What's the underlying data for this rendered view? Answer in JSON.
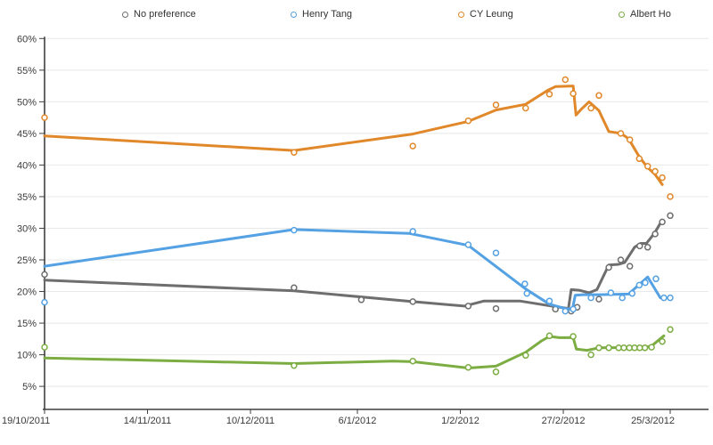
{
  "chart_data": {
    "type": "line",
    "grid": true,
    "legend_position": "top",
    "marker_style": "open-circle",
    "x_axis": {
      "tick_labels": [
        "19/10/2011",
        "14/11/2011",
        "10/12/2011",
        "6/1/2012",
        "1/2/2012",
        "27/2/2012",
        "25/3/2012"
      ],
      "tick_positions_days": [
        0,
        26,
        52,
        79,
        105,
        131,
        158
      ],
      "range_days": [
        0,
        158
      ],
      "start_date": "19/10/2011",
      "end_date": "25/3/2012"
    },
    "y_axis": {
      "unit": "%",
      "min": 5,
      "max": 60,
      "step": 5,
      "tick_labels": [
        "5%",
        "10%",
        "15%",
        "20%",
        "25%",
        "30%",
        "35%",
        "40%",
        "45%",
        "50%",
        "55%",
        "60%"
      ]
    },
    "series": [
      {
        "name": "No preference",
        "color": "#6e6e6e",
        "survey_points": [
          [
            0,
            22.7
          ],
          [
            63,
            20.6
          ],
          [
            80,
            18.7
          ],
          [
            93,
            18.4
          ],
          [
            107,
            17.7
          ],
          [
            114,
            17.3
          ],
          [
            129,
            17.2
          ],
          [
            133,
            16.9
          ],
          [
            134.5,
            17.5
          ],
          [
            140,
            18.8
          ],
          [
            142.5,
            23.8
          ],
          [
            145.5,
            25.0
          ],
          [
            147.8,
            24.0
          ],
          [
            150.3,
            27.2
          ],
          [
            152.3,
            27.0
          ],
          [
            154.2,
            29.1
          ],
          [
            156,
            31.0
          ],
          [
            158,
            32.0
          ]
        ],
        "trend_line": [
          [
            0,
            21.8
          ],
          [
            63,
            20.1
          ],
          [
            93,
            18.4
          ],
          [
            106,
            17.7
          ],
          [
            111,
            18.5
          ],
          [
            120,
            18.5
          ],
          [
            127,
            17.8
          ],
          [
            132.3,
            17.3
          ],
          [
            133,
            20.3
          ],
          [
            135,
            20.2
          ],
          [
            137.5,
            19.8
          ],
          [
            139.5,
            20.3
          ],
          [
            142.5,
            24.2
          ],
          [
            145,
            24.3
          ],
          [
            146.5,
            24.6
          ],
          [
            149,
            27.0
          ],
          [
            150.5,
            27.6
          ],
          [
            152,
            27.6
          ],
          [
            154,
            29.2
          ],
          [
            156,
            31.3
          ]
        ]
      },
      {
        "name": "Henry Tang",
        "color": "#54a1e3",
        "survey_points": [
          [
            0,
            18.3
          ],
          [
            63,
            29.7
          ],
          [
            93,
            29.5
          ],
          [
            107,
            27.4
          ],
          [
            114,
            26.1
          ],
          [
            121.3,
            21.2
          ],
          [
            121.8,
            19.7
          ],
          [
            127.5,
            18.5
          ],
          [
            131.5,
            16.9
          ],
          [
            133.5,
            17.2
          ],
          [
            138,
            19.0
          ],
          [
            143,
            19.8
          ],
          [
            145.9,
            19.0
          ],
          [
            148.4,
            19.7
          ],
          [
            150.2,
            21.0
          ],
          [
            151.7,
            21.4
          ],
          [
            154.4,
            22.0
          ],
          [
            156.4,
            19.0
          ],
          [
            158,
            19.0
          ]
        ],
        "trend_line": [
          [
            0,
            24.0
          ],
          [
            63,
            29.8
          ],
          [
            92,
            29.2
          ],
          [
            107,
            27.3
          ],
          [
            121.5,
            20.4
          ],
          [
            127.5,
            18.0
          ],
          [
            131.5,
            17.3
          ],
          [
            133.3,
            17.2
          ],
          [
            134,
            19.4
          ],
          [
            136,
            19.5
          ],
          [
            140,
            19.5
          ],
          [
            147.5,
            19.6
          ],
          [
            152.3,
            22.3
          ],
          [
            155.5,
            19.0
          ]
        ]
      },
      {
        "name": "CY Leung",
        "color": "#e0882a",
        "survey_points": [
          [
            0,
            47.5
          ],
          [
            63,
            42.0
          ],
          [
            93,
            43.0
          ],
          [
            107,
            47.0
          ],
          [
            114,
            49.5
          ],
          [
            121.5,
            49.0
          ],
          [
            127.5,
            51.2
          ],
          [
            131.5,
            53.5
          ],
          [
            133.5,
            51.3
          ],
          [
            138,
            49.0
          ],
          [
            140,
            51.0
          ],
          [
            145.5,
            45.0
          ],
          [
            147.8,
            44.0
          ],
          [
            150.2,
            41.0
          ],
          [
            152.3,
            39.8
          ],
          [
            154.2,
            39.0
          ],
          [
            156,
            38.0
          ],
          [
            158,
            35.0
          ]
        ],
        "trend_line": [
          [
            0,
            44.6
          ],
          [
            63,
            42.3
          ],
          [
            93,
            44.9
          ],
          [
            107,
            46.9
          ],
          [
            114,
            48.7
          ],
          [
            121.5,
            49.6
          ],
          [
            127,
            51.8
          ],
          [
            129,
            52.4
          ],
          [
            133.5,
            52.5
          ],
          [
            134.2,
            47.9
          ],
          [
            135.5,
            48.8
          ],
          [
            137.5,
            50.0
          ],
          [
            140,
            48.6
          ],
          [
            142.5,
            45.3
          ],
          [
            145.5,
            45.0
          ],
          [
            147,
            44.4
          ],
          [
            148,
            43.6
          ],
          [
            150.2,
            41.3
          ],
          [
            152.3,
            39.6
          ],
          [
            154.2,
            38.5
          ],
          [
            156,
            36.9
          ]
        ]
      },
      {
        "name": "Albert Ho",
        "color": "#7cad42",
        "survey_points": [
          [
            0,
            11.2
          ],
          [
            63,
            8.3
          ],
          [
            93,
            9.0
          ],
          [
            107,
            8.0
          ],
          [
            114,
            7.3
          ],
          [
            121.5,
            9.9
          ],
          [
            127.5,
            13.0
          ],
          [
            133.5,
            12.9
          ],
          [
            138,
            10.0
          ],
          [
            140,
            11.1
          ],
          [
            142.5,
            11.1
          ],
          [
            145,
            11.1
          ],
          [
            146.3,
            11.1
          ],
          [
            147.7,
            11.1
          ],
          [
            149,
            11.1
          ],
          [
            150.3,
            11.1
          ],
          [
            151.6,
            11.1
          ],
          [
            153.3,
            11.2
          ],
          [
            156,
            12.1
          ],
          [
            158,
            14.0
          ]
        ],
        "trend_line": [
          [
            0,
            9.5
          ],
          [
            63,
            8.6
          ],
          [
            88,
            9.0
          ],
          [
            93,
            8.9
          ],
          [
            107,
            7.9
          ],
          [
            114,
            8.2
          ],
          [
            121.5,
            10.4
          ],
          [
            125.5,
            12.2
          ],
          [
            127.5,
            12.9
          ],
          [
            130,
            12.7
          ],
          [
            133.5,
            12.7
          ],
          [
            134.3,
            10.9
          ],
          [
            137,
            10.7
          ],
          [
            140,
            11.1
          ],
          [
            151.6,
            11.15
          ],
          [
            153.3,
            11.4
          ],
          [
            156.4,
            13.0
          ]
        ]
      }
    ],
    "colors": {
      "grid": "#e8e8e8",
      "axis": "#3f3f3f",
      "tick_text": "#3a3a3a",
      "legend_text": "#333333",
      "background": "#ffffff"
    }
  }
}
